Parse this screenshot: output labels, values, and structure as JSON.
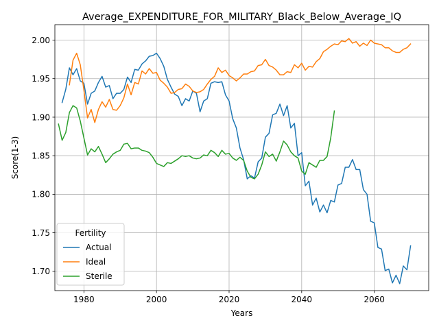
{
  "chart_data": {
    "type": "line",
    "title": "Average_EXPENDITURE_FOR_MILITARY_Black_Below_Average_IQ",
    "xlabel": "Years",
    "ylabel": "Score(1-3)",
    "xlim": [
      1972,
      2075
    ],
    "ylim": [
      1.675,
      2.02
    ],
    "xticks": [
      1980,
      2000,
      2020,
      2040,
      2060
    ],
    "yticks": [
      1.7,
      1.75,
      1.8,
      1.85,
      1.9,
      1.95,
      2.0
    ],
    "xtick_labels": [
      "1980",
      "2000",
      "2020",
      "2040",
      "2060"
    ],
    "ytick_labels": [
      "1.70",
      "1.75",
      "1.80",
      "1.85",
      "1.90",
      "1.95",
      "2.00"
    ],
    "grid": true,
    "legend": {
      "title": "Fertility",
      "placement": "lower-left"
    },
    "series": [
      {
        "name": "Actual",
        "color": "#1f77b4",
        "x": [
          1974,
          1975,
          1976,
          1977,
          1978,
          1979,
          1980,
          1981,
          1982,
          1983,
          1984,
          1985,
          1986,
          1987,
          1988,
          1989,
          1990,
          1991,
          1992,
          1993,
          1994,
          1995,
          1996,
          1997,
          1998,
          1999,
          2000,
          2001,
          2002,
          2003,
          2004,
          2005,
          2006,
          2007,
          2008,
          2009,
          2010,
          2011,
          2012,
          2013,
          2014,
          2015,
          2016,
          2017,
          2018,
          2019,
          2020,
          2021,
          2022,
          2023,
          2024,
          2025,
          2026,
          2027,
          2028,
          2029,
          2030,
          2031,
          2032,
          2033,
          2034,
          2035,
          2036,
          2037,
          2038,
          2039,
          2040,
          2041,
          2042,
          2043,
          2044,
          2045,
          2046,
          2047,
          2048,
          2049,
          2050,
          2051,
          2052,
          2053,
          2054,
          2055,
          2056,
          2057,
          2058,
          2059,
          2060,
          2061,
          2062,
          2063,
          2064,
          2065,
          2066,
          2067,
          2068,
          2069,
          2070
        ],
        "y": [
          1.919,
          1.936,
          1.964,
          1.955,
          1.963,
          1.947,
          1.944,
          1.917,
          1.931,
          1.934,
          1.945,
          1.953,
          1.939,
          1.941,
          1.924,
          1.931,
          1.931,
          1.936,
          1.952,
          1.945,
          1.962,
          1.961,
          1.969,
          1.973,
          1.979,
          1.98,
          1.983,
          1.976,
          1.966,
          1.949,
          1.939,
          1.93,
          1.927,
          1.915,
          1.924,
          1.921,
          1.934,
          1.931,
          1.907,
          1.921,
          1.924,
          1.944,
          1.946,
          1.945,
          1.946,
          1.929,
          1.921,
          1.898,
          1.886,
          1.86,
          1.845,
          1.82,
          1.824,
          1.821,
          1.842,
          1.847,
          1.874,
          1.879,
          1.903,
          1.905,
          1.917,
          1.902,
          1.915,
          1.886,
          1.892,
          1.85,
          1.854,
          1.811,
          1.817,
          1.786,
          1.795,
          1.777,
          1.786,
          1.776,
          1.792,
          1.79,
          1.812,
          1.814,
          1.835,
          1.835,
          1.845,
          1.832,
          1.832,
          1.806,
          1.8,
          1.765,
          1.763,
          1.731,
          1.729,
          1.701,
          1.703,
          1.685,
          1.695,
          1.684,
          1.707,
          1.702,
          1.733
        ]
      },
      {
        "name": "Ideal",
        "color": "#ff7f0e",
        "x": [
          1976,
          1977,
          1978,
          1979,
          1980,
          1981,
          1982,
          1983,
          1984,
          1985,
          1986,
          1987,
          1988,
          1989,
          1990,
          1991,
          1992,
          1993,
          1994,
          1995,
          1996,
          1997,
          1998,
          1999,
          2000,
          2001,
          2002,
          2003,
          2004,
          2005,
          2006,
          2007,
          2008,
          2009,
          2010,
          2011,
          2012,
          2013,
          2014,
          2015,
          2016,
          2017,
          2018,
          2019,
          2020,
          2021,
          2022,
          2023,
          2024,
          2025,
          2026,
          2027,
          2028,
          2029,
          2030,
          2031,
          2032,
          2033,
          2034,
          2035,
          2036,
          2037,
          2038,
          2039,
          2040,
          2041,
          2042,
          2043,
          2044,
          2045,
          2046,
          2047,
          2048,
          2049,
          2050,
          2051,
          2052,
          2053,
          2054,
          2055,
          2056,
          2057,
          2058,
          2059,
          2060,
          2061,
          2062,
          2063,
          2064,
          2065,
          2066,
          2067,
          2068,
          2069,
          2070
        ],
        "y": [
          1.942,
          1.974,
          1.983,
          1.968,
          1.935,
          1.899,
          1.91,
          1.893,
          1.91,
          1.92,
          1.913,
          1.923,
          1.91,
          1.909,
          1.915,
          1.925,
          1.943,
          1.929,
          1.945,
          1.943,
          1.96,
          1.956,
          1.963,
          1.957,
          1.958,
          1.948,
          1.944,
          1.939,
          1.931,
          1.932,
          1.936,
          1.937,
          1.943,
          1.94,
          1.934,
          1.932,
          1.933,
          1.936,
          1.943,
          1.949,
          1.953,
          1.964,
          1.958,
          1.961,
          1.954,
          1.951,
          1.947,
          1.951,
          1.956,
          1.956,
          1.959,
          1.96,
          1.967,
          1.968,
          1.975,
          1.967,
          1.965,
          1.961,
          1.955,
          1.955,
          1.959,
          1.958,
          1.968,
          1.964,
          1.97,
          1.961,
          1.966,
          1.965,
          1.972,
          1.976,
          1.985,
          1.988,
          1.992,
          1.995,
          1.994,
          1.999,
          1.998,
          2.002,
          1.996,
          1.998,
          1.992,
          1.996,
          1.993,
          2.0,
          1.996,
          1.995,
          1.994,
          1.99,
          1.99,
          1.986,
          1.984,
          1.984,
          1.988,
          1.99,
          1.995
        ]
      },
      {
        "name": "Sterile",
        "color": "#2ca02c",
        "x": [
          1973,
          1974,
          1975,
          1976,
          1977,
          1978,
          1979,
          1980,
          1981,
          1982,
          1983,
          1984,
          1985,
          1986,
          1987,
          1988,
          1989,
          1990,
          1991,
          1992,
          1993,
          1994,
          1995,
          1996,
          1997,
          1998,
          1999,
          2000,
          2001,
          2002,
          2003,
          2004,
          2005,
          2006,
          2007,
          2008,
          2009,
          2010,
          2011,
          2012,
          2013,
          2014,
          2015,
          2016,
          2017,
          2018,
          2019,
          2020,
          2021,
          2022,
          2023,
          2024,
          2025,
          2026,
          2027,
          2028,
          2029,
          2030,
          2031,
          2032,
          2033,
          2034,
          2035,
          2036,
          2037,
          2038,
          2039,
          2040,
          2041,
          2042,
          2043,
          2044,
          2045,
          2046,
          2047,
          2048,
          2049
        ],
        "y": [
          1.891,
          1.87,
          1.88,
          1.906,
          1.915,
          1.912,
          1.895,
          1.873,
          1.851,
          1.859,
          1.855,
          1.862,
          1.852,
          1.841,
          1.846,
          1.852,
          1.855,
          1.857,
          1.865,
          1.866,
          1.859,
          1.86,
          1.86,
          1.857,
          1.856,
          1.854,
          1.848,
          1.84,
          1.838,
          1.836,
          1.841,
          1.84,
          1.843,
          1.846,
          1.85,
          1.849,
          1.85,
          1.847,
          1.846,
          1.847,
          1.851,
          1.85,
          1.857,
          1.854,
          1.849,
          1.857,
          1.852,
          1.853,
          1.847,
          1.844,
          1.848,
          1.844,
          1.83,
          1.822,
          1.82,
          1.826,
          1.838,
          1.855,
          1.849,
          1.852,
          1.843,
          1.855,
          1.869,
          1.864,
          1.855,
          1.85,
          1.847,
          1.83,
          1.826,
          1.841,
          1.838,
          1.835,
          1.844,
          1.844,
          1.849,
          1.873,
          1.908
        ]
      }
    ]
  }
}
